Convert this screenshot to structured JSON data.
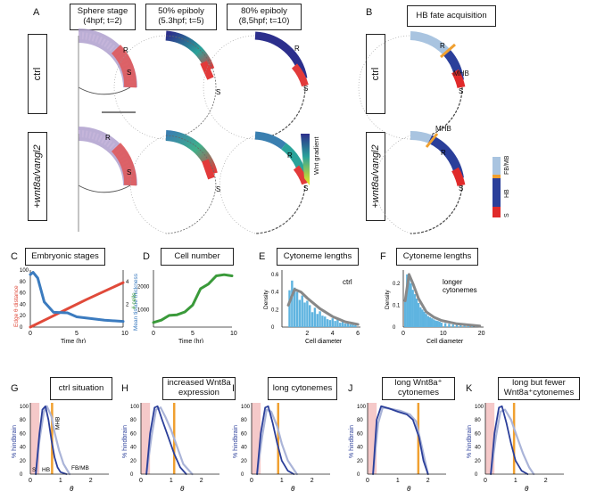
{
  "panelA": {
    "letter": "A",
    "col1_title": "Sphere stage\n(4hpf; t=2)",
    "col2_title": "50% epiboly\n(5.3hpf; t=5)",
    "col3_title": "80% epiboly\n(8,5hpf; t=10)",
    "row1_label": "ctrl",
    "row2_label": "+wnt8a/vangl2",
    "R": "R",
    "S": "S",
    "colorbar_label": "Wnt gradient"
  },
  "panelB": {
    "letter": "B",
    "title": "HB fate acquisition",
    "row1_label": "ctrl",
    "row2_label": "+wnt8a/vangl2",
    "MHB": "MHB",
    "R": "R",
    "S": "S",
    "legend": [
      "FB/MB",
      "HB",
      "S"
    ],
    "legend_colors": [
      "#a9c4e0",
      "#2b3f9a",
      "#e02a2a"
    ]
  },
  "panelC": {
    "letter": "C",
    "title": "Embryonic stages",
    "ylabel_left": "Edge θ distance",
    "ylabel_right": "Mean tissue thickness",
    "xlabel": "Time (hr)",
    "xticks": [
      "0",
      "5",
      "10"
    ],
    "yticks_left": [
      "0",
      "20",
      "40",
      "60",
      "80",
      "100"
    ],
    "yticks_right": [
      "2",
      "4"
    ]
  },
  "panelD": {
    "letter": "D",
    "title": "Cell number",
    "ylabel": "# cells",
    "xlabel": "Time (hr)",
    "xticks": [
      "0",
      "5",
      "10"
    ],
    "yticks": [
      "1000",
      "2000"
    ]
  },
  "panelE": {
    "letter": "E",
    "title": "Cytoneme lengths",
    "ylabel": "Density",
    "xlabel": "Cell diameter",
    "annotation": "ctrl",
    "xticks": [
      "2",
      "4",
      "6"
    ],
    "yticks": [
      "0",
      "0.2",
      "0.4",
      "0.6"
    ]
  },
  "panelF": {
    "letter": "F",
    "title": "Cytoneme lengths",
    "ylabel": "Density",
    "xlabel": "Cell diameter",
    "annotation": "longer\ncytonemes",
    "xticks": [
      "0",
      "10",
      "20"
    ],
    "yticks": [
      "0",
      "0.1",
      "0.2"
    ]
  },
  "panelsGK": [
    {
      "letter": "G",
      "title": "ctrl situation"
    },
    {
      "letter": "H",
      "title": "increased Wnt8a\nexpression"
    },
    {
      "letter": "I",
      "title": "long cytonemes"
    },
    {
      "letter": "J",
      "title": "long Wnt8a⁺\ncytonemes"
    },
    {
      "letter": "K",
      "title": "long but fewer\nWnt8a⁺cytonemes"
    }
  ],
  "gk_common": {
    "ylabel": "% hindbrain",
    "xlabel": "θ",
    "xticks": [
      "0",
      "1",
      "2"
    ],
    "yticks": [
      "0",
      "20",
      "40",
      "60",
      "80",
      "100"
    ],
    "g_labels": [
      "S",
      "HB",
      "FB/MB",
      "MHB"
    ]
  },
  "chart_data": [
    {
      "type": "line",
      "panel": "C",
      "series": [
        {
          "color": "#e04a3a",
          "x": [
            0,
            2,
            4,
            6,
            8,
            10
          ],
          "y": [
            0,
            16,
            32,
            48,
            63,
            78
          ]
        },
        {
          "color": "#3b7bbf",
          "x": [
            0,
            0.3,
            0.8,
            1.5,
            2.5,
            4,
            5,
            6,
            8,
            10
          ],
          "y": [
            4.6,
            4.8,
            4.3,
            2.2,
            1.3,
            1.25,
            0.9,
            0.8,
            0.6,
            0.5
          ]
        }
      ],
      "xlim": [
        0,
        10
      ],
      "ylim": [
        0,
        100
      ],
      "ylim_right": [
        0,
        5
      ]
    },
    {
      "type": "line",
      "panel": "D",
      "series": [
        {
          "color": "#3a9a3a",
          "x": [
            0,
            1,
            2,
            3,
            4,
            5,
            6,
            7,
            8,
            9,
            10
          ],
          "y": [
            450,
            550,
            750,
            780,
            900,
            1200,
            1900,
            2100,
            2450,
            2500,
            2450
          ]
        }
      ],
      "xlim": [
        0,
        10
      ],
      "ylim": [
        250,
        2700
      ]
    },
    {
      "type": "bar",
      "panel": "E",
      "x": [
        0.6,
        0.8,
        1.0,
        1.2,
        1.4,
        1.6,
        1.8,
        2.0,
        2.2,
        2.4,
        2.6,
        2.8,
        3.0,
        3.2,
        3.4,
        3.6,
        3.8,
        4.0,
        4.2,
        4.4,
        4.6,
        4.8,
        5.0,
        5.2,
        5.4,
        5.6,
        5.8
      ],
      "values": [
        0.42,
        0.53,
        0.45,
        0.4,
        0.31,
        0.36,
        0.28,
        0.3,
        0.25,
        0.17,
        0.22,
        0.15,
        0.18,
        0.13,
        0.12,
        0.09,
        0.08,
        0.1,
        0.07,
        0.09,
        0.05,
        0.06,
        0.04,
        0.05,
        0.03,
        0.04,
        0.02
      ],
      "fit": {
        "color": "#888888",
        "x": [
          0.5,
          1.0,
          1.5,
          2,
          3,
          4,
          5,
          6
        ],
        "y": [
          0.25,
          0.43,
          0.4,
          0.33,
          0.21,
          0.12,
          0.06,
          0.03
        ]
      },
      "xlim": [
        0,
        6.2
      ],
      "ylim": [
        0,
        0.65
      ]
    },
    {
      "type": "bar",
      "panel": "F",
      "x": [
        0.5,
        1.0,
        1.5,
        2.0,
        2.5,
        3.0,
        3.5,
        4.0,
        4.5,
        5.0,
        5.5,
        6.0,
        6.5,
        7.0,
        7.5,
        8.0,
        8.5,
        9.0,
        9.5,
        10.0,
        11,
        12,
        13,
        14,
        15,
        16,
        17,
        18,
        19
      ],
      "values": [
        0.12,
        0.24,
        0.22,
        0.2,
        0.17,
        0.15,
        0.13,
        0.11,
        0.09,
        0.08,
        0.07,
        0.06,
        0.05,
        0.045,
        0.04,
        0.035,
        0.03,
        0.028,
        0.025,
        0.02,
        0.018,
        0.015,
        0.012,
        0.01,
        0.009,
        0.008,
        0.006,
        0.005,
        0.004
      ],
      "fit": {
        "color": "#888888",
        "x": [
          0.5,
          1.5,
          2.5,
          4,
          6,
          8,
          10,
          14,
          20
        ],
        "y": [
          0.12,
          0.24,
          0.2,
          0.13,
          0.07,
          0.045,
          0.03,
          0.015,
          0.005
        ]
      },
      "xlim": [
        0,
        21
      ],
      "ylim": [
        0,
        0.26
      ]
    },
    {
      "type": "line",
      "panel": "G",
      "shade_x": [
        0,
        0.3
      ],
      "vline_x": 0.72,
      "series": [
        {
          "color": "#2b3f9a",
          "x": [
            0.18,
            0.3,
            0.4,
            0.5,
            0.6,
            0.7,
            0.8,
            0.9,
            1.0,
            1.2
          ],
          "y": [
            0,
            60,
            95,
            100,
            80,
            50,
            25,
            10,
            3,
            0
          ]
        },
        {
          "color": "#aab4d8",
          "x": [
            0.18,
            0.3,
            0.45,
            0.55,
            0.7,
            0.8,
            0.95,
            1.1,
            1.3
          ],
          "y": [
            0,
            50,
            92,
            100,
            85,
            62,
            35,
            15,
            0
          ]
        }
      ],
      "xlim": [
        0,
        2.6
      ],
      "ylim": [
        0,
        105
      ]
    },
    {
      "type": "line",
      "panel": "H",
      "shade_x": [
        0,
        0.3
      ],
      "vline_x": 1.1,
      "series": [
        {
          "color": "#2b3f9a",
          "x": [
            0.18,
            0.3,
            0.45,
            0.55,
            0.7,
            0.9,
            1.1,
            1.3,
            1.5
          ],
          "y": [
            0,
            60,
            98,
            100,
            80,
            55,
            30,
            10,
            0
          ]
        },
        {
          "color": "#aab4d8",
          "x": [
            0.18,
            0.35,
            0.5,
            0.65,
            0.8,
            1.0,
            1.2,
            1.4,
            1.7
          ],
          "y": [
            0,
            55,
            95,
            98,
            85,
            65,
            40,
            15,
            0
          ]
        }
      ],
      "xlim": [
        0,
        2.6
      ],
      "ylim": [
        0,
        105
      ]
    },
    {
      "type": "line",
      "panel": "I",
      "shade_x": [
        0,
        0.3
      ],
      "vline_x": 0.88,
      "series": [
        {
          "color": "#2b3f9a",
          "x": [
            0.18,
            0.3,
            0.45,
            0.55,
            0.7,
            0.85,
            1.0,
            1.2,
            1.4
          ],
          "y": [
            0,
            60,
            98,
            100,
            75,
            45,
            20,
            5,
            0
          ]
        },
        {
          "color": "#aab4d8",
          "x": [
            0.18,
            0.35,
            0.5,
            0.65,
            0.85,
            1.0,
            1.2,
            1.5
          ],
          "y": [
            0,
            55,
            95,
            92,
            70,
            45,
            20,
            0
          ]
        }
      ],
      "xlim": [
        0,
        2.6
      ],
      "ylim": [
        0,
        105
      ]
    },
    {
      "type": "line",
      "panel": "J",
      "shade_x": [
        0,
        0.3
      ],
      "vline_x": 1.68,
      "series": [
        {
          "color": "#2b3f9a",
          "x": [
            0.18,
            0.3,
            0.45,
            0.7,
            1.0,
            1.3,
            1.5,
            1.7,
            1.85,
            2.0
          ],
          "y": [
            0,
            80,
            100,
            97,
            92,
            88,
            80,
            55,
            20,
            0
          ]
        },
        {
          "color": "#aab4d8",
          "x": [
            0.18,
            0.35,
            0.5,
            0.8,
            1.1,
            1.4,
            1.6,
            1.8,
            2.0
          ],
          "y": [
            0,
            75,
            98,
            96,
            93,
            88,
            78,
            40,
            0
          ]
        }
      ],
      "xlim": [
        0,
        2.6
      ],
      "ylim": [
        0,
        105
      ]
    },
    {
      "type": "line",
      "panel": "K",
      "shade_x": [
        0,
        0.3
      ],
      "vline_x": 0.95,
      "series": [
        {
          "color": "#2b3f9a",
          "x": [
            0.18,
            0.3,
            0.45,
            0.55,
            0.7,
            0.85,
            1.0,
            1.2,
            1.4
          ],
          "y": [
            0,
            60,
            98,
            100,
            75,
            45,
            20,
            5,
            0
          ]
        },
        {
          "color": "#aab4d8",
          "x": [
            0.18,
            0.35,
            0.5,
            0.65,
            0.85,
            1.05,
            1.25,
            1.45,
            1.6
          ],
          "y": [
            0,
            55,
            92,
            95,
            80,
            55,
            30,
            10,
            0
          ]
        }
      ],
      "xlim": [
        0,
        2.6
      ],
      "ylim": [
        0,
        105
      ]
    }
  ]
}
